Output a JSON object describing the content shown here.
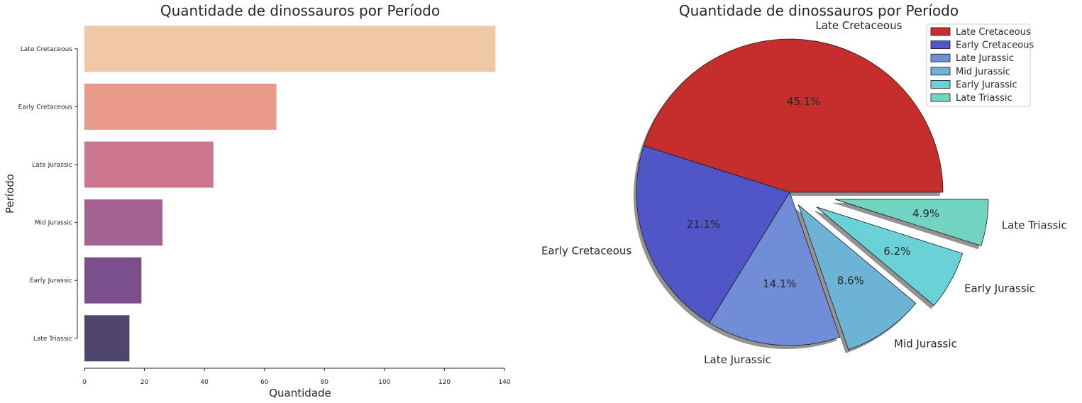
{
  "chart_data": [
    {
      "type": "bar",
      "orientation": "horizontal",
      "title": "Quantidade de dinossauros por Período",
      "xlabel": "Quantidade",
      "ylabel": "Período",
      "categories": [
        "Late Cretaceous",
        "Early Cretaceous",
        "Late Jurassic",
        "Mid Jurassic",
        "Early Jurassic",
        "Late Triassic"
      ],
      "values": [
        137,
        64,
        43,
        26,
        19,
        15
      ],
      "xlim": [
        0,
        140
      ],
      "xticks": [
        0,
        20,
        40,
        60,
        80,
        100,
        120,
        140
      ],
      "colors": [
        "#f0c8a6",
        "#e99a8b",
        "#cd768f",
        "#a46293",
        "#7b4f8c",
        "#50456c"
      ],
      "grid": false
    },
    {
      "type": "pie",
      "title": "Quantidade de dinossauros por Período",
      "categories": [
        "Late Cretaceous",
        "Early Cretaceous",
        "Late Jurassic",
        "Mid Jurassic",
        "Early Jurassic",
        "Late Triassic"
      ],
      "percentages": [
        "45.1%",
        "21.1%",
        "14.1%",
        "8.6%",
        "6.2%",
        "4.9%"
      ],
      "values": [
        45.1,
        21.1,
        14.1,
        8.6,
        6.2,
        4.9
      ],
      "explode": [
        0,
        0,
        0,
        0.1,
        0.2,
        0.3
      ],
      "shadow": true,
      "colors": [
        "#c62d2d",
        "#5056c6",
        "#718dd8",
        "#6db3d6",
        "#6ad2d6",
        "#72d4c2"
      ],
      "legend": {
        "location": "top-right",
        "entries": [
          "Late Cretaceous",
          "Early Cretaceous",
          "Late Jurassic",
          "Mid Jurassic",
          "Early Jurassic",
          "Late Triassic"
        ]
      }
    }
  ]
}
